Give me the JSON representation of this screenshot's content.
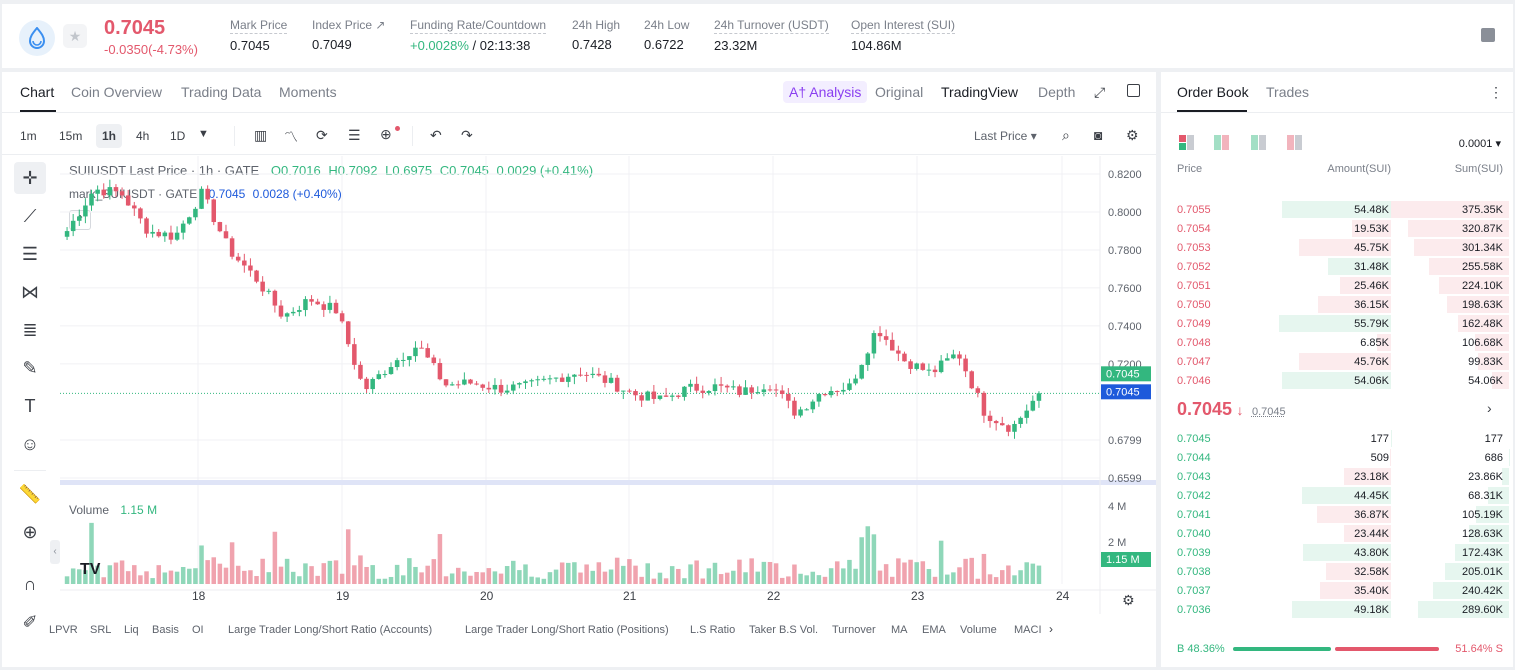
{
  "header": {
    "last_price": "0.7045",
    "change": "-0.0350(-4.73%)",
    "stats": [
      {
        "label": "Mark Price",
        "value": "0.7045"
      },
      {
        "label": "Index Price ↗",
        "value": "0.7049"
      },
      {
        "label": "Funding Rate/Countdown",
        "value_green": "+0.0028%",
        "value": " / 02:13:38"
      },
      {
        "label": "24h High",
        "value": "0.7428"
      },
      {
        "label": "24h Low",
        "value": "0.6722"
      },
      {
        "label": "24h Turnover (USDT)",
        "value": "23.32M"
      },
      {
        "label": "Open Interest (SUI)",
        "value": "104.86M"
      }
    ]
  },
  "chart_tabs": [
    "Chart",
    "Coin Overview",
    "Trading Data",
    "Moments"
  ],
  "view_tabs": {
    "analysis": "A† Analysis",
    "original": "Original",
    "tradingview": "TradingView",
    "depth": "Depth"
  },
  "timeframes": [
    "1m",
    "15m",
    "1h",
    "4h",
    "1D"
  ],
  "price_type": "Last Price ▾",
  "legend": {
    "title": "SUIUSDT Last Price · 1h · GATE",
    "o": "O0.7016",
    "h": "H0.7092",
    "l": "L0.6975",
    "c": "C0.7045",
    "chg": "0.0029 (+0.41%)",
    "mark_label": "mark_SUIUSDT · GATE",
    "mark_val": "0.7045",
    "mark_chg": "0.0028 (+0.40%)",
    "volume_label": "Volume",
    "volume_val": "1.15 M"
  },
  "price_axis": [
    "0.8200",
    "0.8000",
    "0.7800",
    "0.7600",
    "0.7400",
    "0.7200",
    "0.6799",
    "0.6599"
  ],
  "price_tags": {
    "last": "0.7045",
    "mark": "0.7045",
    "volume": "1.15 M"
  },
  "volume_axis": [
    "4 M",
    "2 M"
  ],
  "time_axis": [
    "18",
    "19",
    "20",
    "21",
    "22",
    "23",
    "24"
  ],
  "indicators": [
    "LPVR",
    "SRL",
    "Liq",
    "Basis",
    "OI",
    "Large Trader Long/Short Ratio (Accounts)",
    "Large Trader Long/Short Ratio (Positions)",
    "L.S Ratio",
    "Taker B.S Vol.",
    "Turnover",
    "MA",
    "EMA",
    "Volume",
    "MACI"
  ],
  "colors": {
    "up": "#33b77f",
    "down": "#e3586c",
    "accent": "#1e5adb"
  },
  "chart_data": {
    "type": "candlestick",
    "x_ticks": [
      "18",
      "19",
      "20",
      "21",
      "22",
      "23",
      "24"
    ],
    "ylim": [
      0.6599,
      0.82
    ],
    "approx_close_path": [
      0.79,
      0.812,
      0.81,
      0.79,
      0.787,
      0.81,
      0.78,
      0.765,
      0.745,
      0.754,
      0.748,
      0.706,
      0.72,
      0.73,
      0.709,
      0.71,
      0.707,
      0.708,
      0.712,
      0.716,
      0.711,
      0.704,
      0.701,
      0.707,
      0.708,
      0.705,
      0.71,
      0.694,
      0.706,
      0.708,
      0.739,
      0.722,
      0.715,
      0.726,
      0.694,
      0.686,
      0.7045
    ],
    "volume_unit": "M"
  },
  "order_book": {
    "tabs": [
      "Order Book",
      "Trades"
    ],
    "precision": "0.0001 ▾",
    "columns": [
      "Price",
      "Amount(SUI)",
      "Sum(SUI)"
    ],
    "asks": [
      {
        "price": "0.7055",
        "amount": "54.48K",
        "sum": "375.35K"
      },
      {
        "price": "0.7054",
        "amount": "19.53K",
        "sum": "320.87K"
      },
      {
        "price": "0.7053",
        "amount": "45.75K",
        "sum": "301.34K"
      },
      {
        "price": "0.7052",
        "amount": "31.48K",
        "sum": "255.58K"
      },
      {
        "price": "0.7051",
        "amount": "25.46K",
        "sum": "224.10K"
      },
      {
        "price": "0.7050",
        "amount": "36.15K",
        "sum": "198.63K"
      },
      {
        "price": "0.7049",
        "amount": "55.79K",
        "sum": "162.48K"
      },
      {
        "price": "0.7048",
        "amount": "6.85K",
        "sum": "106.68K"
      },
      {
        "price": "0.7047",
        "amount": "45.76K",
        "sum": "99.83K"
      },
      {
        "price": "0.7046",
        "amount": "54.06K",
        "sum": "54.06K"
      }
    ],
    "mid_price": "0.7045",
    "mid_arrow": "↓",
    "mid_mark": "0.7045",
    "bids": [
      {
        "price": "0.7045",
        "amount": "177",
        "sum": "177"
      },
      {
        "price": "0.7044",
        "amount": "509",
        "sum": "686"
      },
      {
        "price": "0.7043",
        "amount": "23.18K",
        "sum": "23.86K"
      },
      {
        "price": "0.7042",
        "amount": "44.45K",
        "sum": "68.31K"
      },
      {
        "price": "0.7041",
        "amount": "36.87K",
        "sum": "105.19K"
      },
      {
        "price": "0.7040",
        "amount": "23.44K",
        "sum": "128.63K"
      },
      {
        "price": "0.7039",
        "amount": "43.80K",
        "sum": "172.43K"
      },
      {
        "price": "0.7038",
        "amount": "32.58K",
        "sum": "205.01K"
      },
      {
        "price": "0.7037",
        "amount": "35.40K",
        "sum": "240.42K"
      },
      {
        "price": "0.7036",
        "amount": "49.18K",
        "sum": "289.60K"
      }
    ],
    "buy_ratio": "48.36%",
    "sell_ratio": "51.64%",
    "buy_label": "B",
    "sell_label": "S",
    "buy_fraction": 0.4836
  }
}
